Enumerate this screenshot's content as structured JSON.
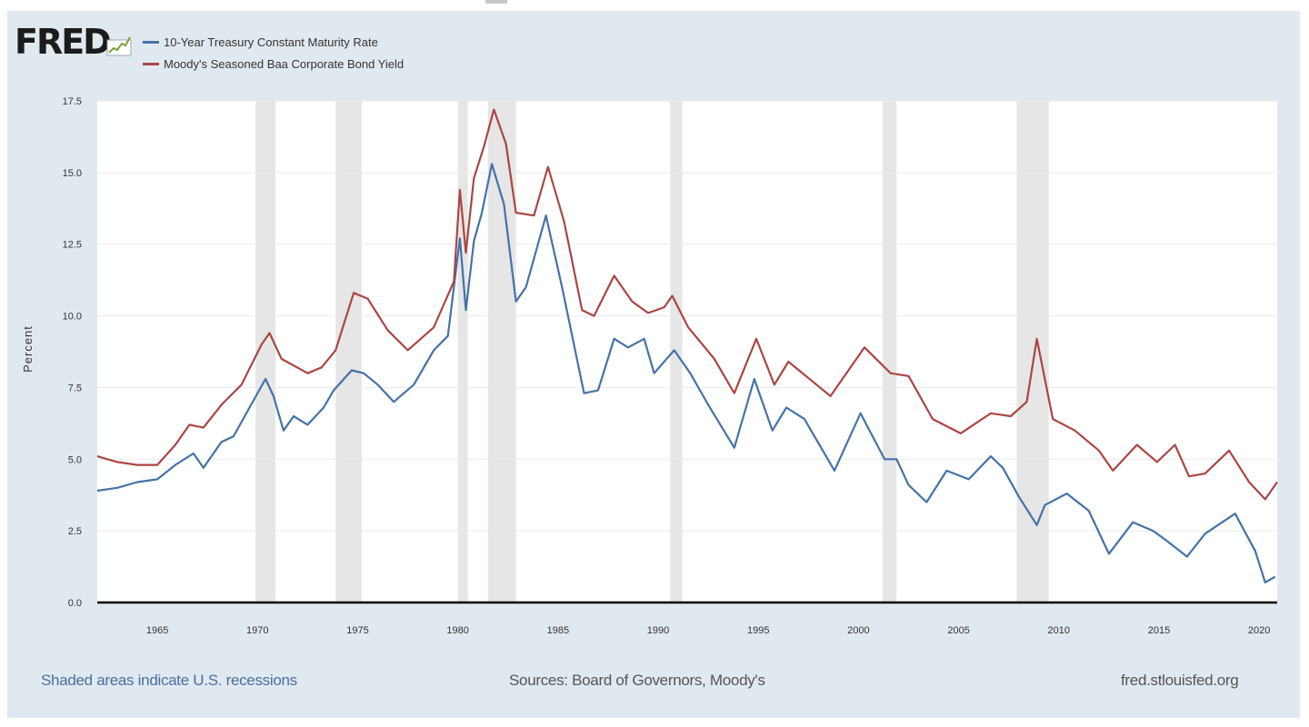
{
  "brand": {
    "logo_text": "FRED"
  },
  "footer": {
    "note": "Shaded areas indicate U.S. recessions",
    "sources": "Sources: Board of Governors, Moody's",
    "site": "fred.stlouisfed.org"
  },
  "colors": {
    "treasury": "#4572a7",
    "baa": "#aa4643",
    "recession": "#e6e6e6",
    "background": "#e1e9f0"
  },
  "chart_data": {
    "type": "line",
    "title": "",
    "xlabel": "",
    "ylabel": "Percent",
    "xlim": [
      1962,
      2020.9
    ],
    "ylim": [
      0,
      17.5
    ],
    "grid": true,
    "legend_position": "top-left",
    "x_ticks": [
      "1965",
      "1970",
      "1975",
      "1980",
      "1985",
      "1990",
      "1995",
      "2000",
      "2005",
      "2010",
      "2015",
      "2020"
    ],
    "y_ticks": [
      "0.0",
      "2.5",
      "5.0",
      "7.5",
      "10.0",
      "12.5",
      "15.0",
      "17.5"
    ],
    "recessions": [
      [
        1969.9,
        1970.9
      ],
      [
        1973.9,
        1975.2
      ],
      [
        1980.0,
        1980.5
      ],
      [
        1981.5,
        1982.9
      ],
      [
        1990.6,
        1991.2
      ],
      [
        2001.2,
        2001.9
      ],
      [
        2007.9,
        2009.5
      ]
    ],
    "series": [
      {
        "name": "10-Year Treasury Constant Maturity Rate",
        "color": "#4572a7",
        "x": [
          1962,
          1963,
          1964,
          1965,
          1965.9,
          1966.8,
          1967.3,
          1968.2,
          1968.8,
          1969.6,
          1970.4,
          1970.8,
          1971.3,
          1971.8,
          1972.5,
          1973.3,
          1973.8,
          1974.7,
          1975.3,
          1976,
          1976.8,
          1977.8,
          1978.8,
          1979.5,
          1980.1,
          1980.4,
          1980.8,
          1981.2,
          1981.7,
          1982.3,
          1982.9,
          1983.4,
          1984.4,
          1985.2,
          1986.3,
          1987,
          1987.8,
          1988.5,
          1989.3,
          1989.8,
          1990.8,
          1991.6,
          1992.5,
          1993.8,
          1994.8,
          1995.7,
          1996.4,
          1997.3,
          1998.8,
          2000.1,
          2001.3,
          2001.9,
          2002.5,
          2003.4,
          2004.4,
          2005.5,
          2006.6,
          2007.2,
          2008,
          2008.9,
          2009.3,
          2010.4,
          2011.5,
          2012.5,
          2013.7,
          2014.7,
          2015.3,
          2016.4,
          2017.3,
          2018.8,
          2019.8,
          2020.3,
          2020.8
        ],
        "values": [
          3.9,
          4.0,
          4.2,
          4.3,
          4.8,
          5.2,
          4.7,
          5.6,
          5.8,
          6.8,
          7.8,
          7.2,
          6.0,
          6.5,
          6.2,
          6.8,
          7.4,
          8.1,
          8.0,
          7.6,
          7.0,
          7.6,
          8.8,
          9.3,
          12.7,
          10.2,
          12.6,
          13.6,
          15.3,
          13.9,
          10.5,
          11.0,
          13.5,
          11.0,
          7.3,
          7.4,
          9.2,
          8.9,
          9.2,
          8.0,
          8.8,
          8.0,
          6.9,
          5.4,
          7.8,
          6.0,
          6.8,
          6.4,
          4.6,
          6.6,
          5.0,
          5.0,
          4.1,
          3.5,
          4.6,
          4.3,
          5.1,
          4.7,
          3.7,
          2.7,
          3.4,
          3.8,
          3.2,
          1.7,
          2.8,
          2.5,
          2.2,
          1.6,
          2.4,
          3.1,
          1.8,
          0.7,
          0.9
        ]
      },
      {
        "name": "Moody's Seasoned Baa Corporate Bond Yield",
        "color": "#aa4643",
        "x": [
          1962,
          1963,
          1964,
          1965,
          1965.9,
          1966.6,
          1967.3,
          1968.2,
          1969.2,
          1970.2,
          1970.6,
          1971.2,
          1972.5,
          1973.2,
          1973.9,
          1974.8,
          1975.5,
          1976.5,
          1977.5,
          1978.8,
          1979.8,
          1980.1,
          1980.4,
          1980.8,
          1981.3,
          1981.8,
          1982.4,
          1982.9,
          1983.8,
          1984.5,
          1985.3,
          1986.2,
          1986.8,
          1987.8,
          1988.7,
          1989.5,
          1990.3,
          1990.7,
          1991.5,
          1992.8,
          1993.8,
          1994.9,
          1995.8,
          1996.5,
          1998.6,
          2000.3,
          2001.6,
          2002.5,
          2003.7,
          2005.1,
          2006.6,
          2007.6,
          2008.4,
          2008.9,
          2009.7,
          2010.8,
          2012,
          2012.7,
          2013.9,
          2014.9,
          2015.8,
          2016.5,
          2017.3,
          2018.5,
          2019.5,
          2020.3,
          2020.9
        ],
        "values": [
          5.1,
          4.9,
          4.8,
          4.8,
          5.5,
          6.2,
          6.1,
          6.9,
          7.6,
          9.0,
          9.4,
          8.5,
          8.0,
          8.2,
          8.8,
          10.8,
          10.6,
          9.5,
          8.8,
          9.6,
          11.2,
          14.4,
          12.2,
          14.8,
          15.9,
          17.2,
          16.0,
          13.6,
          13.5,
          15.2,
          13.3,
          10.2,
          10.0,
          11.4,
          10.5,
          10.1,
          10.3,
          10.7,
          9.6,
          8.5,
          7.3,
          9.2,
          7.6,
          8.4,
          7.2,
          8.9,
          8.0,
          7.9,
          6.4,
          5.9,
          6.6,
          6.5,
          7.0,
          9.2,
          6.4,
          6.0,
          5.3,
          4.6,
          5.5,
          4.9,
          5.5,
          4.4,
          4.5,
          5.3,
          4.2,
          3.6,
          4.2
        ]
      }
    ]
  }
}
